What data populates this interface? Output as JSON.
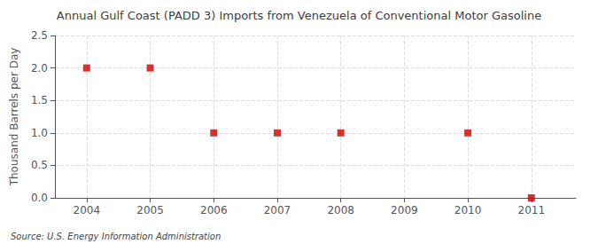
{
  "chart_data": {
    "type": "scatter",
    "title": "Annual Gulf Coast (PADD 3) Imports from Venezuela of Conventional Motor Gasoline",
    "ylabel": "Thousand Barrels per Day",
    "source": "Source: U.S. Energy Information Administration",
    "x": [
      2004,
      2005,
      2006,
      2007,
      2008,
      2010,
      2011
    ],
    "values": [
      2.0,
      2.0,
      1.0,
      1.0,
      1.0,
      1.0,
      0.0
    ],
    "color": "#CC0000",
    "marker": "square",
    "xlim": [
      2003.5,
      2011.7
    ],
    "xticks": [
      2004,
      2005,
      2006,
      2007,
      2008,
      2009,
      2010,
      2011
    ],
    "ylim": [
      0.0,
      2.5
    ],
    "yticks": [
      {
        "value": 0.0,
        "label": "0.0"
      },
      {
        "value": 0.5,
        "label": "0.5"
      },
      {
        "value": 1.0,
        "label": "1.0"
      },
      {
        "value": 1.5,
        "label": "1.5"
      },
      {
        "value": 2.0,
        "label": "2.0"
      },
      {
        "value": 2.5,
        "label": "2.5"
      }
    ],
    "grid": true
  }
}
